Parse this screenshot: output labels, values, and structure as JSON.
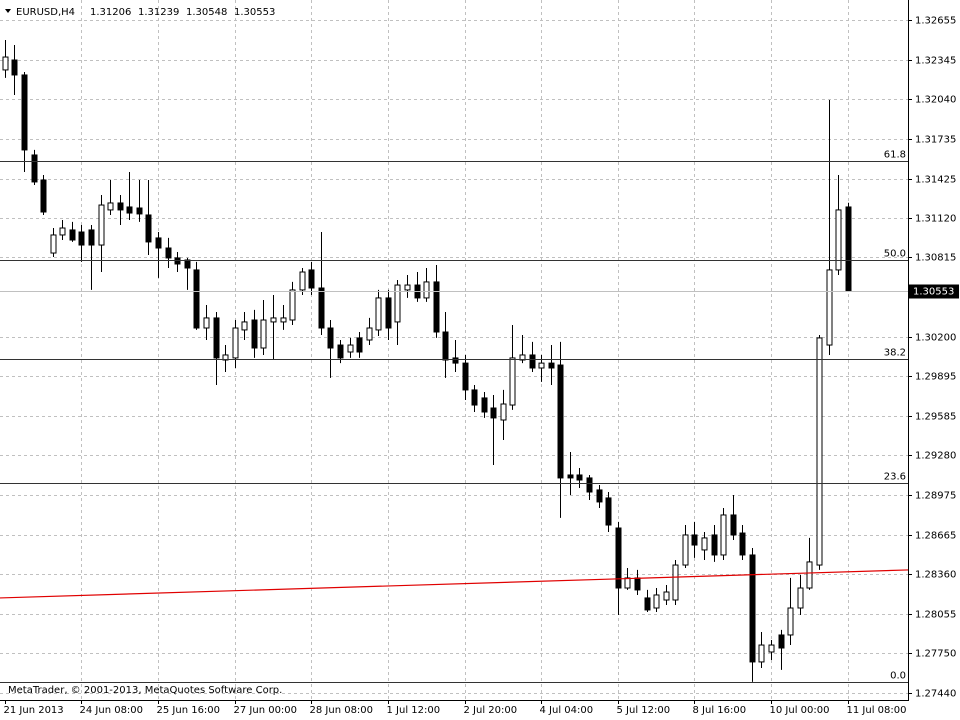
{
  "chart_data": {
    "type": "candlestick",
    "title": "EURUSD,H4",
    "footnote": "MetaTrader, © 2001-2013, MetaQuotes Software Corp.",
    "categories": [
      "21 Jun 2013",
      null,
      null,
      null,
      null,
      null,
      null,
      null,
      "24 Jun 08:00",
      null,
      null,
      null,
      null,
      null,
      null,
      null,
      "25 Jun 16:00",
      null,
      null,
      null,
      null,
      null,
      null,
      null,
      "27 Jun 00:00",
      null,
      null,
      null,
      null,
      null,
      null,
      null,
      "28 Jun 08:00",
      null,
      null,
      null,
      null,
      null,
      null,
      null,
      "1 Jul 12:00",
      null,
      null,
      null,
      null,
      null,
      null,
      null,
      "2 Jul 20:00",
      null,
      null,
      null,
      null,
      null,
      null,
      null,
      "4 Jul 04:00",
      null,
      null,
      null,
      null,
      null,
      null,
      null,
      "5 Jul 12:00",
      null,
      null,
      null,
      null,
      null,
      null,
      null,
      "8 Jul 16:00",
      null,
      null,
      null,
      null,
      null,
      null,
      null,
      "10 Jul 00:00",
      null,
      null,
      null,
      null,
      null,
      null,
      null,
      "11 Jul 08:00"
    ],
    "open": [
      1.32268,
      1.32345,
      1.32229,
      1.31609,
      1.31415,
      1.30849,
      1.30989,
      1.31028,
      1.31012,
      1.31028,
      1.30911,
      1.31183,
      1.31237,
      1.31206,
      1.31198,
      1.31144,
      1.30966,
      1.30888,
      1.30811,
      1.30795,
      1.30718,
      1.30268,
      1.30346,
      1.3002,
      1.30036,
      1.30253,
      1.3033,
      1.30113,
      1.30315,
      1.30315,
      1.3033,
      1.30563,
      1.30718,
      1.30578,
      1.30268,
      1.30136,
      1.30082,
      1.30191,
      1.30175,
      1.30253,
      1.30501,
      1.30315,
      1.30563,
      1.30601,
      1.30501,
      1.30625,
      1.30237,
      1.30036,
      1.29996,
      1.29788,
      1.29726,
      1.29648,
      1.29555,
      1.29671,
      1.3002,
      1.30059,
      1.29958,
      1.29996,
      1.29981,
      1.29129,
      1.29129,
      1.29106,
      1.29013,
      1.28951,
      1.28718,
      1.28253,
      1.28331,
      1.28176,
      1.28098,
      1.2816,
      1.2816,
      1.28431,
      1.28664,
      1.28548,
      1.28664,
      1.28509,
      1.28819,
      1.28679,
      1.28509,
      1.2768,
      1.27757,
      1.27889,
      1.27889,
      1.28098,
      1.28253,
      1.28431,
      1.30136,
      1.30718,
      1.31206
    ],
    "high": [
      1.325,
      1.32461,
      1.32252,
      1.31648,
      1.31454,
      1.31043,
      1.31105,
      1.3109,
      1.31066,
      1.31066,
      1.31299,
      1.31415,
      1.31299,
      1.31477,
      1.31415,
      1.31415,
      1.31012,
      1.30966,
      1.30857,
      1.30811,
      1.3078,
      1.30446,
      1.30392,
      1.30136,
      1.3033,
      1.30392,
      1.30408,
      1.30485,
      1.30524,
      1.30446,
      1.30625,
      1.30733,
      1.3078,
      1.31012,
      1.3033,
      1.30175,
      1.30191,
      1.30237,
      1.30346,
      1.30563,
      1.30563,
      1.3064,
      1.30679,
      1.30702,
      1.30733,
      1.30756,
      1.30392,
      1.30175,
      1.30059,
      1.29826,
      1.29772,
      1.29749,
      1.29788,
      1.30291,
      1.30214,
      1.3016,
      1.30059,
      1.30136,
      1.3016,
      1.29307,
      1.29183,
      1.29129,
      1.29051,
      1.28997,
      1.28765,
      1.28408,
      1.28393,
      1.28238,
      1.28253,
      1.28276,
      1.2847,
      1.28741,
      1.28765,
      1.28687,
      1.28741,
      1.28873,
      1.28974,
      1.28741,
      1.28563,
      1.27912,
      1.2785,
      1.27928,
      1.28331,
      1.28354,
      1.28641,
      1.30214,
      1.32035,
      1.31454,
      1.31239
    ],
    "low": [
      1.32206,
      1.32074,
      1.31477,
      1.31376,
      1.31144,
      1.30818,
      1.3095,
      1.30935,
      1.3078,
      1.30563,
      1.30702,
      1.31144,
      1.31066,
      1.31105,
      1.3109,
      1.30834,
      1.30656,
      1.30733,
      1.30702,
      1.30563,
      1.30253,
      1.30175,
      1.29826,
      1.29927,
      1.29958,
      1.30175,
      1.30036,
      1.30059,
      1.3002,
      1.30253,
      1.30291,
      1.30524,
      1.30524,
      1.30214,
      1.29881,
      1.29996,
      1.30036,
      1.30036,
      1.30136,
      1.30206,
      1.30175,
      1.30136,
      1.30501,
      1.3047,
      1.3047,
      1.30191,
      1.29881,
      1.29927,
      1.2971,
      1.29617,
      1.29571,
      1.29206,
      1.294,
      1.29633,
      1.29996,
      1.29927,
      1.2985,
      1.29826,
      1.28796,
      1.28974,
      1.29028,
      1.28935,
      1.28873,
      1.28687,
      1.28044,
      1.28238,
      1.28199,
      1.28067,
      1.28067,
      1.28121,
      1.28121,
      1.28408,
      1.28486,
      1.2847,
      1.28455,
      1.2847,
      1.28625,
      1.2847,
      1.27525,
      1.27633,
      1.27695,
      1.27618,
      1.27811,
      1.28044,
      1.28238,
      1.28393,
      1.30059,
      1.30679,
      1.30548
    ],
    "close": [
      1.32368,
      1.32229,
      1.31648,
      1.314,
      1.31167,
      1.30989,
      1.31043,
      1.3095,
      1.30911,
      1.30911,
      1.31221,
      1.31237,
      1.31183,
      1.31159,
      1.31152,
      1.30935,
      1.30888,
      1.30811,
      1.30764,
      1.30733,
      1.30268,
      1.30346,
      1.30036,
      1.30059,
      1.30268,
      1.30315,
      1.30113,
      1.3033,
      1.30346,
      1.30346,
      1.30563,
      1.30702,
      1.30578,
      1.30268,
      1.30113,
      1.30036,
      1.30136,
      1.30082,
      1.30268,
      1.30501,
      1.30268,
      1.30601,
      1.30601,
      1.30501,
      1.30625,
      1.30237,
      1.3002,
      1.29996,
      1.29788,
      1.29671,
      1.29617,
      1.29571,
      1.29679,
      1.30036,
      1.30059,
      1.29958,
      1.29996,
      1.29958,
      1.29106,
      1.29106,
      1.2909,
      1.28997,
      1.2892,
      1.28741,
      1.28253,
      1.28331,
      1.28238,
      1.28083,
      1.28199,
      1.28222,
      1.28431,
      1.28664,
      1.28586,
      1.28641,
      1.28509,
      1.28819,
      1.28664,
      1.28509,
      1.2768,
      1.27811,
      1.27811,
      1.27788,
      1.28098,
      1.28253,
      1.28455,
      1.30191,
      1.30718,
      1.31183,
      1.30553
    ],
    "up_color": "#ffffff",
    "down_color": "#000000",
    "xlim": [
      -0.5,
      94.3
    ],
    "ylim": [
      1.27385,
      1.3281
    ],
    "yticks": [
      1.32655,
      1.32345,
      {
        "value": 1.3204,
        "label": "1.32040"
      },
      1.31735,
      1.31425,
      {
        "value": 1.3112,
        "label": "1.31120"
      },
      1.30815,
      {
        "value": 1.302,
        "label": "1.30200"
      },
      1.29895,
      1.29585,
      {
        "value": 1.2928,
        "label": "1.29280"
      },
      1.28975,
      1.28665,
      {
        "value": 1.2836,
        "label": "1.28360"
      },
      1.28055,
      {
        "value": 1.2775,
        "label": "1.27750"
      },
      {
        "value": 1.2744,
        "label": "1.27440"
      }
    ],
    "grid": true,
    "last_price": 1.30553,
    "fibonacci": [
      {
        "label": "61.8",
        "price": 1.31562
      },
      {
        "label": "50.0",
        "price": 1.30795
      },
      {
        "label": "38.2",
        "price": 1.30028
      },
      {
        "label": "23.6",
        "price": 1.29067
      },
      {
        "label": "0.0",
        "price": 1.27525
      }
    ],
    "trendline": {
      "color": "#e00000",
      "values": [
        1.28176,
        1.28393
      ]
    }
  }
}
